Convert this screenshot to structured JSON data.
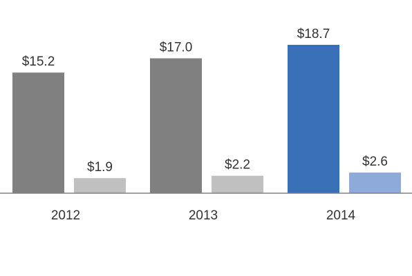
{
  "chart_data": {
    "type": "bar",
    "categories": [
      "2012",
      "2013",
      "2014"
    ],
    "series": [
      {
        "values": [
          15.2,
          17.0,
          18.7
        ],
        "colors": [
          "#808080",
          "#808080",
          "#3a70b8"
        ]
      },
      {
        "values": [
          1.9,
          2.2,
          2.6
        ],
        "colors": [
          "#c0c0c0",
          "#c0c0c0",
          "#8eaadb"
        ]
      }
    ],
    "value_labels": [
      [
        "$15.2",
        "$17.0",
        "$18.7"
      ],
      [
        "$1.9",
        "$2.2",
        "$2.6"
      ]
    ],
    "ylim": [
      0,
      20
    ],
    "grid": false,
    "legend": "none",
    "axis_color": "#808080",
    "label_color": "#333333"
  }
}
